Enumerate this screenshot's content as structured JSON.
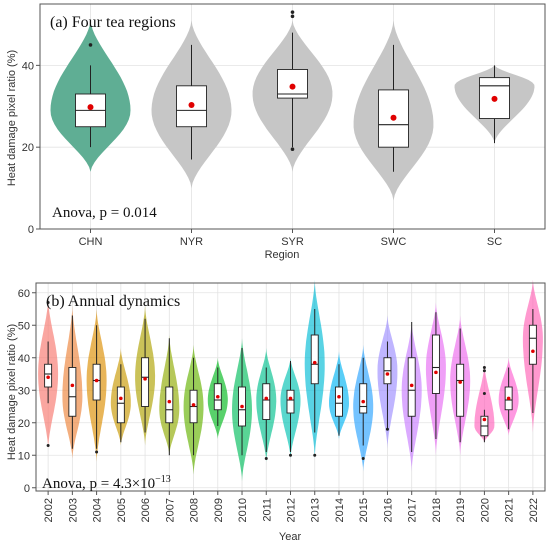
{
  "chart_data": [
    {
      "type": "violin",
      "title": "(a) Four tea regions",
      "xlabel": "Region",
      "ylabel": "Heat damage pixel ratio (%)",
      "ylim": [
        0,
        55
      ],
      "yticks": [
        0,
        20,
        40
      ],
      "grid": true,
      "annotation": "Anova, p = 0.014",
      "categories": [
        "CHN",
        "NYR",
        "SYR",
        "SWC",
        "SC"
      ],
      "colors": [
        "#5fae94",
        "#c6c6c6",
        "#c6c6c6",
        "#c6c6c6",
        "#c6c6c6"
      ],
      "violin_range": [
        [
          14,
          51
        ],
        [
          10,
          51
        ],
        [
          14,
          51
        ],
        [
          7,
          51
        ],
        [
          21,
          40
        ]
      ],
      "q1": [
        25,
        25,
        32,
        20,
        27
      ],
      "median": [
        29,
        29,
        33,
        25.5,
        35
      ],
      "q3": [
        33,
        35,
        39,
        34,
        37
      ],
      "whisker_low": [
        20,
        17,
        20,
        14,
        21
      ],
      "whisker_high": [
        40,
        45,
        48,
        45,
        40
      ],
      "mean": [
        29.8,
        30.3,
        34.8,
        27.2,
        31.8
      ],
      "outliers": [
        [
          45
        ],
        [],
        [
          19.5,
          52,
          53
        ],
        [],
        []
      ]
    },
    {
      "type": "violin",
      "title": "(b) Annual dynamics",
      "xlabel": "Year",
      "ylabel": "Heat damage pixel ratio (%)",
      "ylim": [
        -1,
        63
      ],
      "yticks": [
        0,
        10,
        20,
        30,
        40,
        50,
        60
      ],
      "grid": true,
      "annotation": "Anova, p = 4.3×10",
      "annotation_sup": "−13",
      "categories": [
        "2002",
        "2003",
        "2004",
        "2005",
        "2006",
        "2007",
        "2008",
        "2009",
        "2010",
        "2011",
        "2012",
        "2013",
        "2014",
        "2015",
        "2016",
        "2017",
        "2018",
        "2019",
        "2020",
        "2021",
        "2022"
      ],
      "colors": [
        "#f8766d",
        "#ec8239",
        "#db8e00",
        "#c79800",
        "#aea200",
        "#8faa00",
        "#64b200",
        "#00b81b",
        "#00bd5c",
        "#00c08d",
        "#00c1b2",
        "#00bcd6",
        "#00b3f2",
        "#29a3ff",
        "#9c8dff",
        "#c77cff",
        "#e76bf3",
        "#ed68ed",
        "#ff62bc",
        "#fd61d1",
        "#ff63b6"
      ],
      "violin_range": [
        [
          12,
          58
        ],
        [
          9,
          56
        ],
        [
          8,
          55
        ],
        [
          13,
          43
        ],
        [
          13,
          56
        ],
        [
          10,
          47
        ],
        [
          4,
          44
        ],
        [
          15,
          40
        ],
        [
          2,
          46
        ],
        [
          8,
          43
        ],
        [
          9,
          40
        ],
        [
          9,
          64
        ],
        [
          15,
          42
        ],
        [
          5,
          44
        ],
        [
          12,
          53
        ],
        [
          5,
          51
        ],
        [
          10,
          57
        ],
        [
          10,
          53
        ],
        [
          14,
          38
        ],
        [
          16,
          40
        ],
        [
          17,
          64
        ]
      ],
      "q1": [
        31,
        22,
        27,
        20,
        25,
        20,
        20,
        24,
        19,
        21,
        23,
        32,
        22,
        23,
        32,
        22,
        29,
        22,
        16,
        24,
        38
      ],
      "median": [
        35,
        28,
        33,
        26,
        34,
        24,
        25,
        27,
        24,
        27,
        27,
        38,
        26,
        25,
        36,
        30,
        37,
        33,
        19,
        27,
        46
      ],
      "q3": [
        38,
        37,
        38,
        31,
        40,
        31,
        30,
        32,
        31,
        32,
        30,
        47,
        31,
        32,
        40,
        40,
        47,
        38,
        22,
        31,
        50
      ],
      "whisker_low": [
        26,
        12,
        12,
        14,
        17,
        10,
        10,
        19,
        10,
        11,
        11,
        17,
        16,
        13,
        18,
        11,
        15,
        14,
        14,
        18,
        23
      ],
      "whisker_high": [
        45,
        53,
        50,
        38,
        52,
        46,
        40,
        37,
        43,
        37,
        39,
        55,
        38,
        40,
        45,
        51,
        54,
        49,
        24,
        37,
        55
      ],
      "mean": [
        34,
        31.5,
        33,
        27.5,
        33.5,
        26.5,
        25.5,
        28,
        25,
        27.5,
        27.5,
        38.5,
        28,
        26.5,
        35,
        31.5,
        35.5,
        32.5,
        21,
        27.5,
        42
      ],
      "outliers": [
        [
          13,
          57
        ],
        [],
        [
          11
        ],
        [],
        [],
        [],
        [],
        [],
        [],
        [
          9
        ],
        [
          10
        ],
        [
          10
        ],
        [],
        [
          9
        ],
        [
          18
        ],
        [],
        [],
        [],
        [
          29,
          36,
          37
        ],
        [],
        []
      ]
    }
  ]
}
